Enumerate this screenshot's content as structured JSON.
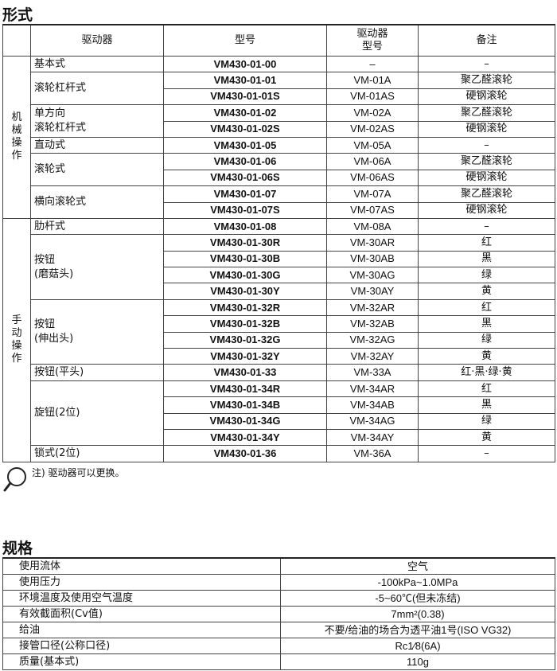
{
  "types": {
    "title": "形式",
    "headers": [
      "驱动器",
      "型号",
      "驱动器\n型号",
      "备注"
    ],
    "groups": [
      {
        "category": "机械操作",
        "actuators": [
          {
            "name": "基本式",
            "rows": [
              [
                "VM430-01-00",
                "–",
                "–"
              ]
            ]
          },
          {
            "name": "滚轮杠杆式",
            "rows": [
              [
                "VM430-01-01",
                "VM-01A",
                "聚乙醛滚轮"
              ],
              [
                "VM430-01-01S",
                "VM-01AS",
                "硬钢滚轮"
              ]
            ]
          },
          {
            "name": "单方向\n滚轮杠杆式",
            "rows": [
              [
                "VM430-01-02",
                "VM-02A",
                "聚乙醛滚轮"
              ],
              [
                "VM430-01-02S",
                "VM-02AS",
                "硬钢滚轮"
              ]
            ]
          },
          {
            "name": "直动式",
            "rows": [
              [
                "VM430-01-05",
                "VM-05A",
                "–"
              ]
            ]
          },
          {
            "name": "滚轮式",
            "rows": [
              [
                "VM430-01-06",
                "VM-06A",
                "聚乙醛滚轮"
              ],
              [
                "VM430-01-06S",
                "VM-06AS",
                "硬钢滚轮"
              ]
            ]
          },
          {
            "name": "横向滚轮式",
            "rows": [
              [
                "VM430-01-07",
                "VM-07A",
                "聚乙醛滚轮"
              ],
              [
                "VM430-01-07S",
                "VM-07AS",
                "硬钢滚轮"
              ]
            ]
          }
        ]
      },
      {
        "category": "手动操作",
        "actuators": [
          {
            "name": "肋杆式",
            "rows": [
              [
                "VM430-01-08",
                "VM-08A",
                "–"
              ]
            ]
          },
          {
            "name": "按钮\n(磨菇头)",
            "rows": [
              [
                "VM430-01-30R",
                "VM-30AR",
                "红"
              ],
              [
                "VM430-01-30B",
                "VM-30AB",
                "黑"
              ],
              [
                "VM430-01-30G",
                "VM-30AG",
                "绿"
              ],
              [
                "VM430-01-30Y",
                "VM-30AY",
                "黄"
              ]
            ]
          },
          {
            "name": "按钮\n(伸出头)",
            "rows": [
              [
                "VM430-01-32R",
                "VM-32AR",
                "红"
              ],
              [
                "VM430-01-32B",
                "VM-32AB",
                "黑"
              ],
              [
                "VM430-01-32G",
                "VM-32AG",
                "绿"
              ],
              [
                "VM430-01-32Y",
                "VM-32AY",
                "黄"
              ]
            ]
          },
          {
            "name": "按钮(平头)",
            "rows": [
              [
                "VM430-01-33",
                "VM-33A",
                "红·黑·绿·黄"
              ]
            ]
          },
          {
            "name": "旋钮(2位)",
            "rows": [
              [
                "VM430-01-34R",
                "VM-34AR",
                "红"
              ],
              [
                "VM430-01-34B",
                "VM-34AB",
                "黑"
              ],
              [
                "VM430-01-34G",
                "VM-34AG",
                "绿"
              ],
              [
                "VM430-01-34Y",
                "VM-34AY",
                "黄"
              ]
            ]
          },
          {
            "name": "锁式(2位)",
            "rows": [
              [
                "VM430-01-36",
                "VM-36A",
                "–"
              ]
            ]
          }
        ]
      }
    ]
  },
  "note": {
    "text": "注) 驱动器可以更换。",
    "icon": "magnifier-icon"
  },
  "specs": {
    "title": "规格",
    "rows": [
      [
        "使用流体",
        "空气"
      ],
      [
        "使用压力",
        "-100kPa~1.0MPa"
      ],
      [
        "环境温度及使用空气温度",
        "-5~60℃(但未冻结)"
      ],
      [
        "有效截面积(Cv值)",
        "7mm²(0.38)"
      ],
      [
        "给油",
        "不要/给油的场合为透平油1号(ISO VG32)"
      ],
      [
        "接管口径(公称口径)",
        "Rc1⁄8(6A)"
      ],
      [
        "质量(基本式)",
        "110g"
      ]
    ]
  }
}
